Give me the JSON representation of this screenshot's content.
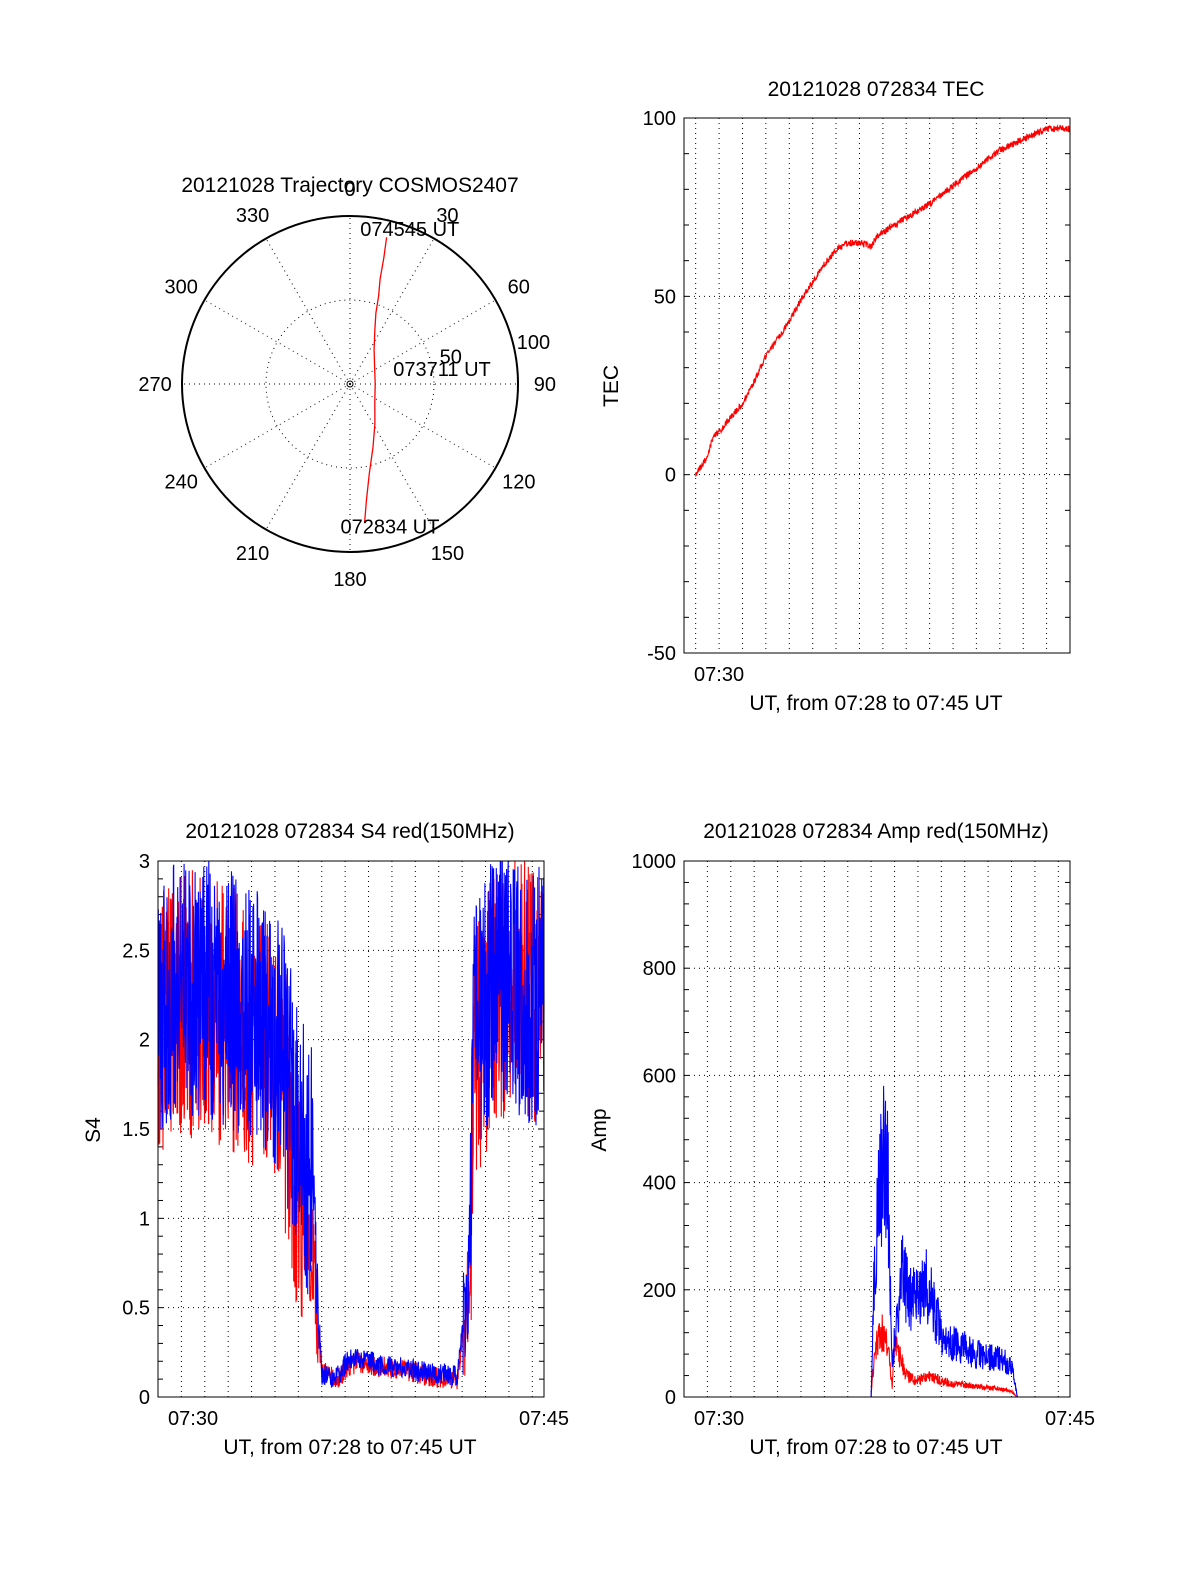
{
  "colors": {
    "red_series": "#ff0000",
    "blue_series": "#0000ff",
    "axes": "#000000",
    "background": "#ffffff"
  },
  "chart_data": [
    {
      "type": "polar",
      "title": "20121028 Trajectory COSMOS2407",
      "angle_labels": [
        "0",
        "30",
        "60",
        "90",
        "120",
        "150",
        "180",
        "210",
        "240",
        "270",
        "300",
        "330"
      ],
      "radius_labels": [
        "50",
        "100"
      ],
      "radius_max": 100,
      "grid": true,
      "trajectory": {
        "color": "red",
        "points_az_zenith": [
          [
            174,
            83
          ],
          [
            172,
            70
          ],
          [
            168,
            55
          ],
          [
            160,
            40
          ],
          [
            148,
            28
          ],
          [
            125,
            18
          ],
          [
            90,
            15
          ],
          [
            60,
            17
          ],
          [
            35,
            25
          ],
          [
            25,
            35
          ],
          [
            20,
            45
          ],
          [
            18,
            55
          ],
          [
            16,
            65
          ],
          [
            15,
            78
          ],
          [
            14,
            90
          ]
        ]
      },
      "annotations": [
        {
          "text": "074545 UT",
          "az": 22,
          "zenith": 95
        },
        {
          "text": "073711 UT",
          "az": 85,
          "zenith": 55
        },
        {
          "text": "072834 UT",
          "az": 165,
          "zenith": 92
        }
      ]
    },
    {
      "type": "line",
      "title": "20121028 072834 TEC",
      "xlabel": "UT, from 07:28 to 07:45 UT",
      "ylabel": "TEC",
      "xlim": [
        7.475,
        7.75
      ],
      "ylim": [
        -50,
        100
      ],
      "x_tick_labels": [
        {
          "x": 7.5,
          "label": "07:30"
        }
      ],
      "y_ticks": [
        -50,
        0,
        50,
        100
      ],
      "x_grid": [
        7.475,
        7.4833,
        7.5,
        7.5167,
        7.5333,
        7.55,
        7.5667,
        7.5833,
        7.6,
        7.6167,
        7.6333,
        7.65,
        7.6667,
        7.6833,
        7.7,
        7.7167,
        7.7333,
        7.75
      ],
      "grid": true,
      "series": [
        {
          "color": "red",
          "points": [
            [
              7.4833,
              0
            ],
            [
              7.4917,
              5
            ],
            [
              7.4958,
              11
            ],
            [
              7.5,
              12
            ],
            [
              7.5083,
              16
            ],
            [
              7.5167,
              20
            ],
            [
              7.525,
              26
            ],
            [
              7.5333,
              33
            ],
            [
              7.5417,
              38
            ],
            [
              7.55,
              43
            ],
            [
              7.5583,
              49
            ],
            [
              7.5667,
              54
            ],
            [
              7.575,
              59
            ],
            [
              7.5833,
              63
            ],
            [
              7.5917,
              65
            ],
            [
              7.6,
              65
            ],
            [
              7.6083,
              64
            ],
            [
              7.6125,
              67
            ],
            [
              7.6167,
              68
            ],
            [
              7.625,
              70
            ],
            [
              7.6333,
              72
            ],
            [
              7.65,
              76
            ],
            [
              7.6667,
              81
            ],
            [
              7.6833,
              86
            ],
            [
              7.7,
              91
            ],
            [
              7.7167,
              94
            ],
            [
              7.7333,
              97
            ],
            [
              7.75,
              97
            ]
          ]
        }
      ]
    },
    {
      "type": "line",
      "title": "20121028 072834 S4 red(150MHz)",
      "xlabel": "UT, from 07:28 to 07:45 UT",
      "ylabel": "S4",
      "xlim": [
        7.475,
        7.75
      ],
      "ylim": [
        0,
        3
      ],
      "x_tick_labels": [
        {
          "x": 7.5,
          "label": "07:30"
        },
        {
          "x": 7.75,
          "label": "07:45"
        }
      ],
      "y_ticks": [
        0,
        0.5,
        1,
        1.5,
        2,
        2.5,
        3
      ],
      "grid": true,
      "series": [
        {
          "color": "red",
          "points": [
            [
              7.475,
              2.1
            ],
            [
              7.5,
              2.2
            ],
            [
              7.52,
              2.15
            ],
            [
              7.54,
              2.05
            ],
            [
              7.5583,
              1.9
            ],
            [
              7.5667,
              1.6
            ],
            [
              7.575,
              1.2
            ],
            [
              7.58,
              0.9
            ],
            [
              7.585,
              0.8
            ],
            [
              7.5917,
              0.12
            ],
            [
              7.5967,
              0.15
            ],
            [
              7.6017,
              0.1
            ],
            [
              7.61,
              0.15
            ],
            [
              7.6167,
              0.2
            ],
            [
              7.625,
              0.18
            ],
            [
              7.6333,
              0.17
            ],
            [
              7.65,
              0.15
            ],
            [
              7.6667,
              0.12
            ],
            [
              7.6883,
              0.1
            ],
            [
              7.6967,
              0.6
            ],
            [
              7.7,
              1.9
            ],
            [
              7.7167,
              2.3
            ],
            [
              7.7333,
              2.3
            ],
            [
              7.75,
              2.2
            ]
          ]
        },
        {
          "color": "blue",
          "points": [
            [
              7.475,
              2.2
            ],
            [
              7.5,
              2.3
            ],
            [
              7.52,
              2.25
            ],
            [
              7.54,
              2.2
            ],
            [
              7.5583,
              2.0
            ],
            [
              7.5667,
              1.8
            ],
            [
              7.575,
              1.5
            ],
            [
              7.585,
              1.2
            ],
            [
              7.5917,
              0.12
            ],
            [
              7.5967,
              0.12
            ],
            [
              7.6017,
              0.1
            ],
            [
              7.61,
              0.2
            ],
            [
              7.6167,
              0.22
            ],
            [
              7.625,
              0.2
            ],
            [
              7.6333,
              0.18
            ],
            [
              7.65,
              0.16
            ],
            [
              7.6667,
              0.14
            ],
            [
              7.6883,
              0.12
            ],
            [
              7.6967,
              0.7
            ],
            [
              7.7,
              2.0
            ],
            [
              7.7167,
              2.4
            ],
            [
              7.7333,
              2.3
            ],
            [
              7.75,
              2.2
            ]
          ]
        }
      ]
    },
    {
      "type": "line",
      "title": "20121028 072834 Amp red(150MHz)",
      "xlabel": "UT, from 07:28 to 07:45 UT",
      "ylabel": "Amp",
      "xlim": [
        7.475,
        7.75
      ],
      "ylim": [
        0,
        1000
      ],
      "x_tick_labels": [
        {
          "x": 7.5,
          "label": "07:30"
        },
        {
          "x": 7.75,
          "label": "07:45"
        }
      ],
      "y_ticks": [
        0,
        200,
        400,
        600,
        800,
        1000
      ],
      "grid": true,
      "series": [
        {
          "color": "red",
          "points": [
            [
              7.4833,
              0
            ],
            [
              7.6083,
              0
            ],
            [
              7.61,
              60
            ],
            [
              7.6133,
              110
            ],
            [
              7.6167,
              120
            ],
            [
              7.62,
              100
            ],
            [
              7.6233,
              20
            ],
            [
              7.625,
              110
            ],
            [
              7.6283,
              80
            ],
            [
              7.6333,
              40
            ],
            [
              7.64,
              30
            ],
            [
              7.65,
              40
            ],
            [
              7.6583,
              30
            ],
            [
              7.6667,
              25
            ],
            [
              7.6833,
              20
            ],
            [
              7.7,
              15
            ],
            [
              7.7083,
              10
            ],
            [
              7.7125,
              0
            ],
            [
              7.75,
              0
            ]
          ]
        },
        {
          "color": "blue",
          "points": [
            [
              7.4833,
              0
            ],
            [
              7.6083,
              0
            ],
            [
              7.61,
              200
            ],
            [
              7.6133,
              350
            ],
            [
              7.6167,
              450
            ],
            [
              7.62,
              420
            ],
            [
              7.6233,
              60
            ],
            [
              7.6267,
              150
            ],
            [
              7.63,
              250
            ],
            [
              7.6333,
              200
            ],
            [
              7.64,
              180
            ],
            [
              7.6467,
              220
            ],
            [
              7.65,
              190
            ],
            [
              7.6583,
              120
            ],
            [
              7.6667,
              100
            ],
            [
              7.6833,
              80
            ],
            [
              7.7,
              70
            ],
            [
              7.7083,
              60
            ],
            [
              7.7125,
              0
            ],
            [
              7.75,
              0
            ]
          ]
        }
      ]
    }
  ]
}
